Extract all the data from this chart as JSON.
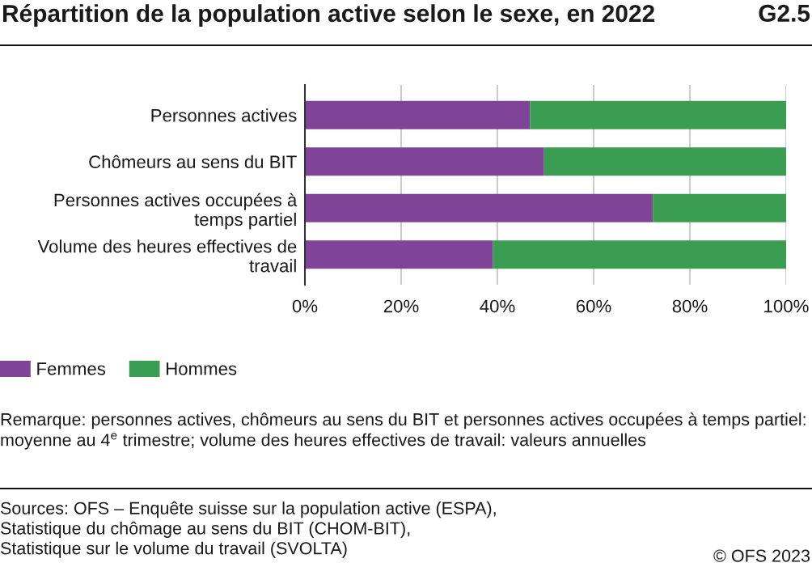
{
  "chart_data": {
    "type": "bar",
    "orientation": "horizontal",
    "stacked": true,
    "title": "Répartition de la population active selon le sexe, en 2022",
    "categories": [
      "Personnes actives",
      "Chômeurs au sens du BIT",
      "Personnes actives occupées à temps partiel",
      "Volume des heures effectives de travail"
    ],
    "series": [
      {
        "name": "Femmes",
        "color": "#7f4398",
        "values": [
          46.8,
          49.7,
          72.3,
          39.1
        ]
      },
      {
        "name": "Hommes",
        "color": "#3a9d52",
        "values": [
          53.2,
          50.3,
          27.7,
          60.9
        ]
      }
    ],
    "xlim": [
      0,
      100
    ],
    "xticks": [
      {
        "value": 0,
        "label": "0%"
      },
      {
        "value": 20,
        "label": "20%"
      },
      {
        "value": 40,
        "label": "40%"
      },
      {
        "value": 60,
        "label": "60%"
      },
      {
        "value": 80,
        "label": "80%"
      },
      {
        "value": 100,
        "label": "100%"
      }
    ],
    "grid": "x",
    "legend": "bottom left",
    "annotations": [
      "G2.5",
      "Remarque: personnes actives, chômeurs au sens du BIT et personnes actives occupées à temps partiel: moyenne au 4$^{e}$ trimestre; volume des heures effectives de travail: valeurs annuelles",
      "Sources: OFS – Enquête suisse sur la population active (ESPA),\nStatistique du chômage au sens du BIT (CHOM-BIT),\nStatistique sur le volume du travail (SVOLTA)",
      "© OFS 2023"
    ]
  }
}
